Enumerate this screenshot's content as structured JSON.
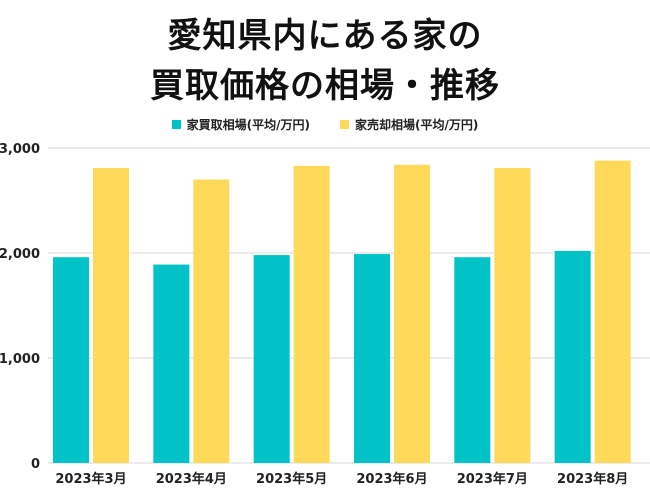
{
  "chart_data": {
    "type": "bar",
    "title_line1": "愛知県内にある家の",
    "title_line2": "買取価格の相場・推移",
    "categories": [
      "2023年3月",
      "2023年4月",
      "2023年5月",
      "2023年6月",
      "2023年7月",
      "2023年8月"
    ],
    "series": [
      {
        "name": "家買取相場(平均/万円)",
        "color": "#00c2c7",
        "values": [
          1960,
          1890,
          1980,
          1990,
          1960,
          2020
        ]
      },
      {
        "name": "家売却相場(平均/万円)",
        "color": "#ffd95a",
        "values": [
          2810,
          2700,
          2830,
          2840,
          2810,
          2880
        ]
      }
    ],
    "ylim": [
      0,
      3000
    ],
    "yticks": [
      0,
      1000,
      2000,
      3000
    ],
    "ytick_labels": [
      "0",
      "1,000",
      "2,000",
      "3,000"
    ],
    "grid": true,
    "legend_position": "top-center"
  }
}
